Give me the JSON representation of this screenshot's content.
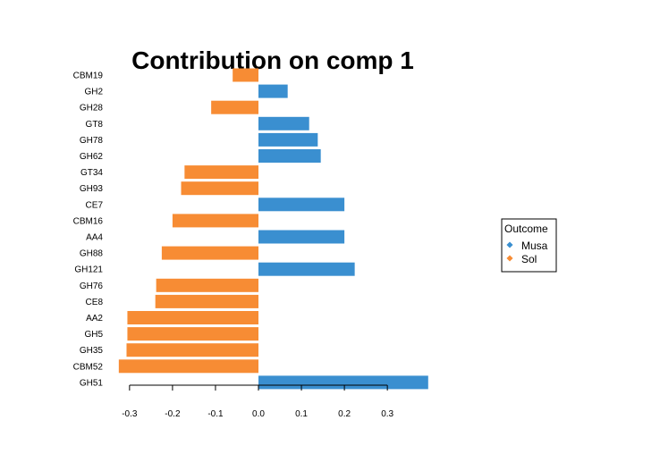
{
  "chart_data": {
    "type": "bar",
    "orientation": "horizontal",
    "title": "Contribution on comp 1",
    "xlabel": "",
    "ylabel": "",
    "xlim": [
      -0.32,
      0.4
    ],
    "xticks": [
      -0.3,
      -0.2,
      -0.1,
      0.0,
      0.1,
      0.2,
      0.3
    ],
    "xtick_labels": [
      "-0.3",
      "-0.2",
      "-0.1",
      "0.0",
      "0.1",
      "0.2",
      "0.3"
    ],
    "grid": false,
    "categories": [
      "CBM19",
      "GH2",
      "GH28",
      "GT8",
      "GH78",
      "GH62",
      "GT34",
      "GH93",
      "CE7",
      "CBM16",
      "AA4",
      "GH88",
      "GH121",
      "GH76",
      "CE8",
      "AA2",
      "GH5",
      "GH35",
      "CBM52",
      "GH51"
    ],
    "values": [
      -0.06,
      0.068,
      -0.11,
      0.118,
      0.138,
      0.145,
      -0.172,
      -0.18,
      0.2,
      -0.2,
      0.2,
      -0.225,
      0.224,
      -0.238,
      -0.24,
      -0.305,
      -0.305,
      -0.307,
      -0.325,
      0.395
    ],
    "groups": [
      "Sol",
      "Musa",
      "Sol",
      "Musa",
      "Musa",
      "Musa",
      "Sol",
      "Sol",
      "Musa",
      "Sol",
      "Musa",
      "Sol",
      "Musa",
      "Sol",
      "Sol",
      "Sol",
      "Sol",
      "Sol",
      "Sol",
      "Musa"
    ],
    "legend": {
      "title": "Outcome",
      "position": "right",
      "entries": [
        {
          "name": "Musa",
          "color": "#3a8fd0"
        },
        {
          "name": "Sol",
          "color": "#f78c34"
        }
      ]
    }
  }
}
